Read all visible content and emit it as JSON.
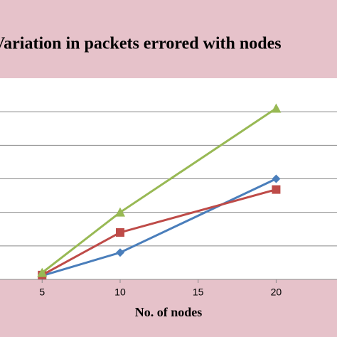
{
  "chart_data": {
    "type": "line",
    "title": "Variation in packets errored with nodes",
    "x_label": "No. of nodes",
    "x": [
      5,
      10,
      20
    ],
    "series": [
      {
        "color": "#4a7ebb",
        "marker": "diamond",
        "values": [
          0.11,
          0.8,
          3.0
        ]
      },
      {
        "color": "#be4b48",
        "marker": "square",
        "values": [
          0.13,
          1.4,
          2.68
        ]
      },
      {
        "color": "#98b954",
        "marker": "triangle",
        "values": [
          0.2,
          2.0,
          5.1
        ]
      }
    ],
    "xlim": [
      2.3,
      23.9
    ],
    "xticks": [
      5,
      10,
      15,
      20
    ],
    "ylim": [
      0,
      6
    ],
    "yticks": [
      0,
      1,
      2,
      3,
      4,
      5
    ],
    "grid": true
  }
}
